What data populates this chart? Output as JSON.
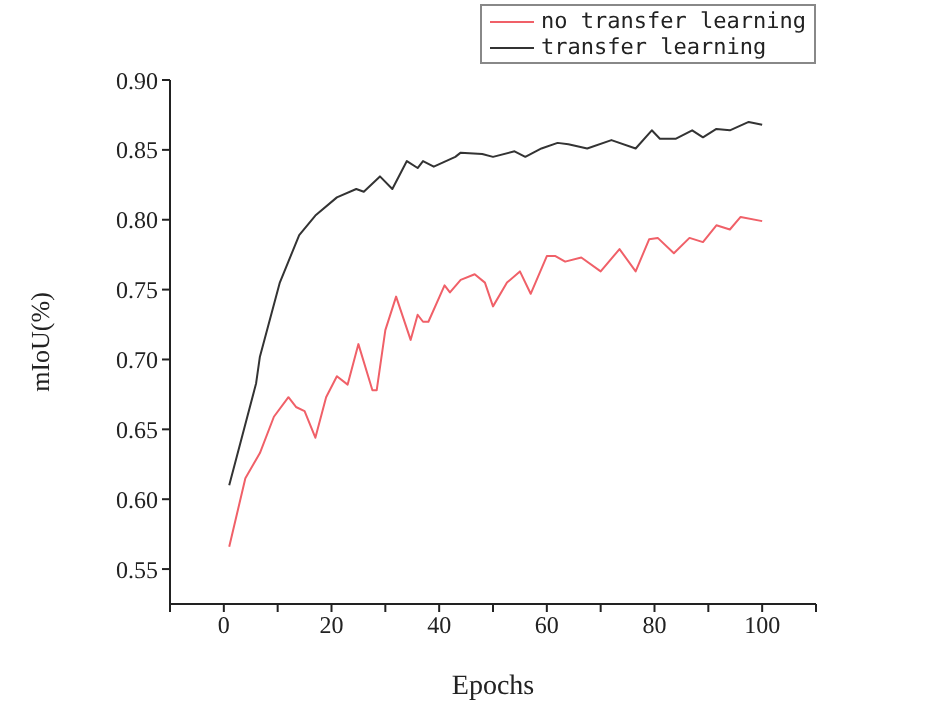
{
  "chart_data": {
    "type": "line",
    "xlabel": "Epochs",
    "ylabel": "mIoU(%)",
    "xlim": [
      -10,
      110
    ],
    "xticks": [
      {
        "value": -10,
        "label": null
      },
      0,
      {
        "value": 10,
        "label": null
      },
      20,
      {
        "value": 30,
        "label": null
      },
      40,
      {
        "value": 50,
        "label": null
      },
      60,
      {
        "value": 70,
        "label": null
      },
      80,
      {
        "value": 90,
        "label": null
      },
      100,
      {
        "value": 110,
        "label": null
      }
    ],
    "ylim": [
      0.525,
      0.9
    ],
    "yticks": [
      {
        "value": 0.55,
        "label": "0.55"
      },
      {
        "value": 0.6,
        "label": "0.60"
      },
      {
        "value": 0.65,
        "label": "0.65"
      },
      {
        "value": 0.7,
        "label": "0.70"
      },
      {
        "value": 0.75,
        "label": "0.75"
      },
      {
        "value": 0.8,
        "label": "0.80"
      },
      {
        "value": 0.85,
        "label": "0.85"
      },
      {
        "value": 0.9,
        "label": "0.90"
      }
    ],
    "grid": false,
    "legend": "top right",
    "marker": "none",
    "line_style": "solid",
    "series": [
      {
        "name": "no transfer learning",
        "color": "#f06068",
        "x": [
          1,
          4,
          6.7,
          9.3,
          12,
          13.4,
          15,
          17,
          19,
          21,
          23,
          25,
          27.6,
          28.4,
          30,
          32,
          34.7,
          36,
          37,
          38,
          41,
          42,
          44,
          46.6,
          48.5,
          50,
          52.6,
          55,
          57,
          60,
          61.6,
          63.4,
          66.4,
          70,
          73.5,
          76.5,
          79,
          80.6,
          83.6,
          86.5,
          89,
          91.5,
          94,
          96,
          100
        ],
        "values": [
          0.566,
          0.615,
          0.633,
          0.659,
          0.673,
          0.666,
          0.663,
          0.644,
          0.673,
          0.688,
          0.682,
          0.711,
          0.678,
          0.678,
          0.721,
          0.745,
          0.714,
          0.732,
          0.727,
          0.727,
          0.753,
          0.748,
          0.757,
          0.761,
          0.755,
          0.738,
          0.755,
          0.763,
          0.747,
          0.774,
          0.774,
          0.77,
          0.773,
          0.763,
          0.779,
          0.763,
          0.786,
          0.787,
          0.776,
          0.787,
          0.784,
          0.796,
          0.793,
          0.802,
          0.799
        ]
      },
      {
        "name": "transfer learning",
        "color": "#333333",
        "x": [
          1,
          6,
          6.7,
          10.4,
          14,
          17,
          21,
          24.6,
          26,
          29,
          31.3,
          34,
          36,
          37,
          39,
          43,
          44,
          48,
          50,
          54,
          56,
          59,
          62,
          64,
          67.5,
          72,
          76.5,
          79.5,
          81,
          84,
          87,
          89,
          91.5,
          94,
          97.5,
          100
        ],
        "values": [
          0.61,
          0.683,
          0.702,
          0.755,
          0.789,
          0.803,
          0.816,
          0.822,
          0.82,
          0.831,
          0.822,
          0.842,
          0.837,
          0.842,
          0.838,
          0.845,
          0.848,
          0.847,
          0.845,
          0.849,
          0.845,
          0.851,
          0.855,
          0.854,
          0.851,
          0.857,
          0.851,
          0.864,
          0.858,
          0.858,
          0.864,
          0.859,
          0.865,
          0.864,
          0.87,
          0.868
        ]
      }
    ]
  }
}
